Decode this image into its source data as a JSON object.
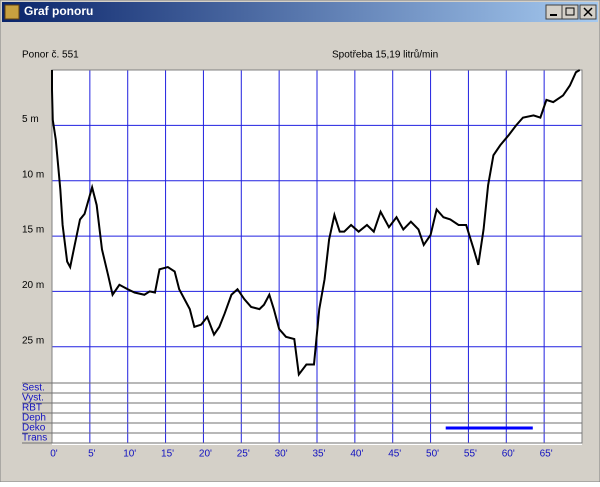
{
  "window": {
    "title": "Graf ponoru"
  },
  "chart_data": {
    "type": "line",
    "subtitle_left": "Ponor č. 551",
    "subtitle_right": "Spotřeba 15,19 litrů/min",
    "x": [
      0,
      0,
      0.1,
      0.5,
      1.1,
      1.4,
      2,
      2.4,
      3,
      3.7,
      4.3,
      5.3,
      5.9,
      6.6,
      7.4,
      8,
      8.9,
      10,
      10.9,
      12.2,
      12.9,
      13.6,
      14.2,
      15.3,
      16.2,
      16.8,
      18.2,
      18.8,
      19.7,
      20.5,
      21.4,
      22.1,
      22.8,
      23.7,
      24.5,
      25.4,
      26.3,
      27.4,
      28,
      28.7,
      29.3,
      30,
      30.9,
      32,
      32.6,
      33.6,
      34.6,
      35.3,
      36,
      36.6,
      37.3,
      38,
      38.6,
      39.5,
      40.5,
      41.6,
      42.5,
      43.4,
      44.5,
      45.5,
      46.4,
      47.4,
      48.4,
      49.1,
      50,
      50.8,
      51.7,
      52.6,
      53.7,
      54.7,
      55.7,
      56.3,
      57,
      57.6,
      58.3,
      59.2,
      60.3,
      61.3,
      62.2,
      63.6,
      64.5,
      65.3,
      66.2,
      67.5,
      68.4,
      69.2,
      69.7
    ],
    "series": [
      {
        "color": "#000000",
        "values": [
          0,
          1.8,
          4.5,
          6.3,
          10.8,
          14,
          17.3,
          17.8,
          15.8,
          13.5,
          13,
          10.6,
          12.2,
          16.2,
          18.5,
          20.3,
          19.4,
          19.8,
          20.1,
          20.3,
          20,
          20.1,
          18,
          17.8,
          18.2,
          19.8,
          21.6,
          23.2,
          23,
          22.3,
          23.9,
          23.2,
          22,
          20.3,
          19.8,
          20.7,
          21.4,
          21.6,
          21.2,
          20.3,
          21.6,
          23.4,
          24.1,
          24.3,
          27.5,
          26.6,
          26.6,
          21.6,
          18.9,
          15.3,
          13.1,
          14.6,
          14.6,
          14,
          14.6,
          14,
          14.6,
          12.8,
          14.2,
          13.3,
          14.4,
          13.7,
          14.4,
          15.8,
          14.9,
          12.6,
          13.3,
          13.5,
          14,
          14,
          16.2,
          17.6,
          14.4,
          10.4,
          7.7,
          6.8,
          5.9,
          5,
          4.3,
          4.1,
          4.3,
          2.7,
          2.9,
          2.3,
          1.4,
          0.2,
          0
        ]
      }
    ],
    "xlim": [
      0,
      70
    ],
    "ylim": [
      0,
      28
    ],
    "y_inverted": true,
    "xticks": [
      {
        "value": 0,
        "label": "0'"
      },
      {
        "value": 5,
        "label": "5'"
      },
      {
        "value": 10,
        "label": "10'"
      },
      {
        "value": 15,
        "label": "15'"
      },
      {
        "value": 20,
        "label": "20'"
      },
      {
        "value": 25,
        "label": "25'"
      },
      {
        "value": 30,
        "label": "30'"
      },
      {
        "value": 35,
        "label": "35'"
      },
      {
        "value": 40,
        "label": "40'"
      },
      {
        "value": 45,
        "label": "45'"
      },
      {
        "value": 50,
        "label": "50'"
      },
      {
        "value": 55,
        "label": "55'"
      },
      {
        "value": 60,
        "label": "60'"
      },
      {
        "value": 65,
        "label": "65'"
      }
    ],
    "yticks": [
      {
        "value": 5,
        "label": "5 m"
      },
      {
        "value": 10,
        "label": "10 m"
      },
      {
        "value": 15,
        "label": "15 m"
      },
      {
        "value": 20,
        "label": "20 m"
      },
      {
        "value": 25,
        "label": "25 m"
      }
    ],
    "grid": true,
    "grid_color": "#2020e0",
    "lanes": [
      "Sest.",
      "Vyst.",
      "RBT",
      "Deph",
      "Deko",
      "Trans"
    ],
    "events": [
      {
        "lane": 4,
        "x": [
          52,
          63.5
        ],
        "color": "#0000ff"
      }
    ]
  }
}
